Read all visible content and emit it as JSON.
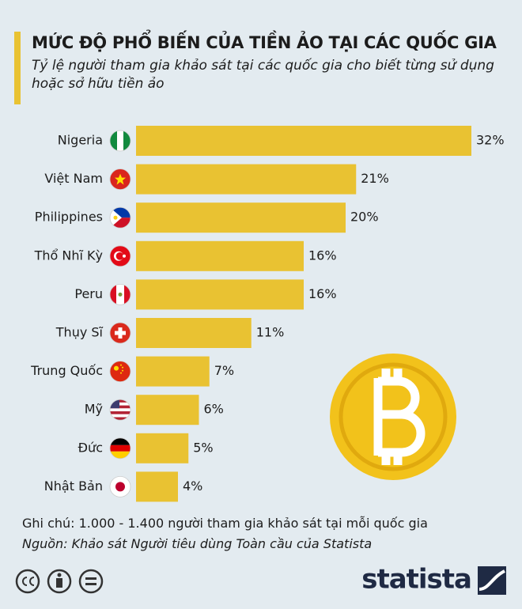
{
  "chart_data": {
    "type": "bar",
    "orientation": "horizontal",
    "title": "MỨC ĐỘ PHỔ BIẾN CỦA TIỀN ẢO TẠI CÁC QUỐC GIA",
    "subtitle": "Tỷ lệ người tham gia khảo sát tại các quốc gia cho biết từng sử dụng hoặc sở hữu tiền ảo",
    "categories": [
      "Nigeria",
      "Việt Nam",
      "Philippines",
      "Thổ Nhĩ Kỳ",
      "Peru",
      "Thụy Sĩ",
      "Trung Quốc",
      "Mỹ",
      "Đức",
      "Nhật Bản"
    ],
    "values": [
      32,
      21,
      20,
      16,
      16,
      11,
      7,
      6,
      5,
      4
    ],
    "value_labels": [
      "32%",
      "21%",
      "20%",
      "16%",
      "16%",
      "11%",
      "7%",
      "6%",
      "5%",
      "4%"
    ],
    "color": "#e9c232"
  },
  "note": "Ghi chú: 1.000 - 1.400 người tham gia khảo sát tại mỗi quốc gia",
  "source": "Nguồn: Khảo sát Người tiêu dùng Toàn cầu của Statista",
  "brand": "statista"
}
